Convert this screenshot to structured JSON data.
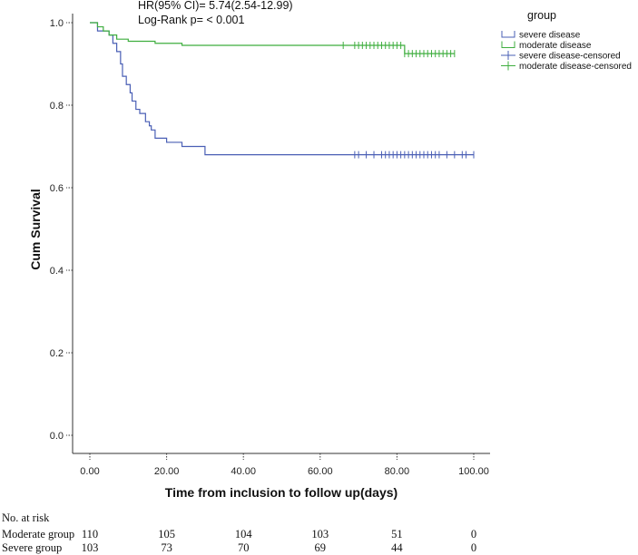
{
  "chart_data": {
    "type": "line",
    "subtype": "kaplan-meier",
    "xlabel": "Time from inclusion to follow up(days)",
    "ylabel": "Cum Survival",
    "xlim": [
      0,
      100
    ],
    "ylim": [
      0,
      1.0
    ],
    "x_ticks": [
      "0.00",
      "20.00",
      "40.00",
      "60.00",
      "80.00",
      "100.00"
    ],
    "y_ticks": [
      "0.0",
      "0.2",
      "0.4",
      "0.6",
      "0.8",
      "1.0"
    ],
    "annotations": [
      "HR(95% CI)= 5.74(2.54-12.99)",
      "Log-Rank p= < 0.001"
    ],
    "legend": {
      "title": "group",
      "placement": "top-right",
      "entries": [
        {
          "label": "severe disease",
          "color": "#4a5fb5",
          "marker": "step"
        },
        {
          "label": "moderate disease",
          "color": "#3fae3f",
          "marker": "step"
        },
        {
          "label": "severe disease-censored",
          "color": "#4a5fb5",
          "marker": "plus"
        },
        {
          "label": "moderate disease-censored",
          "color": "#3fae3f",
          "marker": "plus"
        }
      ]
    },
    "series": [
      {
        "name": "severe disease",
        "color": "#4a5fb5",
        "steps": [
          [
            0,
            1.0
          ],
          [
            2,
            0.98
          ],
          [
            5,
            0.97
          ],
          [
            6,
            0.95
          ],
          [
            7,
            0.93
          ],
          [
            8,
            0.9
          ],
          [
            8.5,
            0.87
          ],
          [
            9.5,
            0.85
          ],
          [
            10.5,
            0.83
          ],
          [
            11,
            0.81
          ],
          [
            12,
            0.79
          ],
          [
            13,
            0.78
          ],
          [
            14.5,
            0.76
          ],
          [
            15.5,
            0.75
          ],
          [
            16,
            0.74
          ],
          [
            17,
            0.72
          ],
          [
            18,
            0.72
          ],
          [
            20,
            0.71
          ],
          [
            24,
            0.7
          ],
          [
            30,
            0.68
          ],
          [
            100,
            0.68
          ]
        ],
        "censored_x": [
          69,
          70,
          72,
          74,
          76,
          77,
          78,
          79,
          80,
          81,
          82,
          83,
          84,
          85,
          86,
          87,
          88,
          89,
          90,
          91,
          93,
          95,
          97,
          98,
          100
        ]
      },
      {
        "name": "moderate disease",
        "color": "#3fae3f",
        "steps": [
          [
            0,
            1.0
          ],
          [
            2,
            0.99
          ],
          [
            3.5,
            0.98
          ],
          [
            5,
            0.97
          ],
          [
            7,
            0.96
          ],
          [
            10,
            0.955
          ],
          [
            17,
            0.95
          ],
          [
            24,
            0.945
          ],
          [
            82,
            0.925
          ],
          [
            95,
            0.925
          ]
        ],
        "censored_x": [
          66,
          69,
          70,
          71,
          72,
          73,
          74,
          75,
          76,
          77,
          78,
          79,
          80,
          81,
          82,
          83,
          84,
          85,
          86,
          87,
          88,
          89,
          90,
          91,
          92,
          93,
          94,
          95
        ]
      }
    ],
    "risk_table": {
      "header": "No. at risk",
      "times": [
        0,
        20,
        40,
        60,
        80,
        100
      ],
      "rows": [
        {
          "label": "Moderate group",
          "counts": [
            "110",
            "105",
            "104",
            "103",
            "51",
            "0"
          ]
        },
        {
          "label": "Severe group",
          "counts": [
            "103",
            "73",
            "70",
            "69",
            "44",
            "0"
          ]
        }
      ]
    }
  }
}
